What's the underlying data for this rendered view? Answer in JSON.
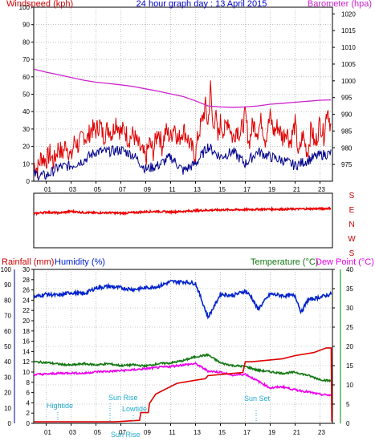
{
  "title": "24 hour graph day : 13 April 2015",
  "colors": {
    "wind": "#e00000",
    "gust": "#ee0000",
    "speed": "#00008b",
    "baro": "#cc22cc",
    "dir": "#ee0000",
    "rain": "#dd0000",
    "hum": "#0022cc",
    "temp": "#117711",
    "dew": "#ee00ee",
    "astro": "#22aacc",
    "frame": "#000000",
    "grid": "#9a9a9a"
  },
  "x_ticks": [
    "01",
    "03",
    "05",
    "07",
    "09",
    "11",
    "13",
    "15",
    "17",
    "19",
    "21",
    "23"
  ],
  "panel1": {
    "left_label": "Windspeed (kph)",
    "right_label": "Barometer (hpa)",
    "left_ticks": [
      "0",
      "10",
      "20",
      "30",
      "40",
      "50",
      "60",
      "70",
      "80",
      "90",
      "100"
    ],
    "right_ticks": [
      "975",
      "980",
      "985",
      "990",
      "995",
      "1000",
      "1005",
      "1010",
      "1015",
      "1020"
    ]
  },
  "panel2": {
    "compass": [
      "S",
      "E",
      "N",
      "W",
      "S"
    ]
  },
  "panel3": {
    "rain_label": "Rainfall (mm)",
    "hum_label": "Humidity (%)",
    "temp_label": "Temperature (°C)",
    "dew_label": "Dew Point (°C)",
    "rain_ticks": [
      "0",
      "10",
      "20",
      "30",
      "40",
      "50",
      "60",
      "70",
      "80",
      "90",
      "100"
    ],
    "hum_ticks": [
      "0",
      "2",
      "4",
      "6",
      "8",
      "10",
      "12",
      "14",
      "16",
      "18",
      "20",
      "22",
      "24",
      "26",
      "28",
      "30"
    ],
    "temp_ticks": [
      "0",
      "5",
      "10",
      "15",
      "20",
      "25",
      "30",
      "35",
      "40"
    ],
    "annotations": {
      "hightide": "Hightide",
      "sunrise": "Sun Rise",
      "lowtide": "Lowtide",
      "sunset": "Sun Set",
      "sunrise_bottom": "Sun Rise"
    }
  },
  "chart_data": [
    {
      "type": "line",
      "title": "24 hour graph day : 13 April 2015",
      "x_label": "",
      "x_range_hours": [
        0,
        24
      ],
      "ylim": [
        0,
        100
      ],
      "y2lim": [
        970,
        1022
      ],
      "series": [
        {
          "name": "Windspeed (kph)",
          "axis": "left",
          "x": [
            0,
            0.3,
            0.6,
            1,
            1.3,
            1.6,
            2,
            2.3,
            2.6,
            3,
            3.3,
            3.6,
            4,
            4.3,
            4.6,
            5,
            5.3,
            5.6,
            6,
            6.3,
            6.6,
            7,
            7.3,
            7.6,
            8,
            8.3,
            8.6,
            9,
            9.3,
            9.6,
            10,
            10.3,
            10.6,
            11,
            11.3,
            11.6,
            12,
            12.3,
            12.6,
            13,
            13.2,
            13.5,
            13.8,
            14,
            14.2,
            14.4,
            14.6,
            14.8,
            15,
            15.3,
            15.6,
            16,
            16.3,
            16.6,
            17,
            17.3,
            17.6,
            18,
            18.3,
            18.6,
            19,
            19.3,
            19.6,
            20,
            20.3,
            20.6,
            21,
            21.3,
            21.6,
            22,
            22.3,
            22.6,
            23,
            23.3,
            23.6,
            23.9
          ],
          "values": [
            10,
            7,
            14,
            12,
            16,
            11,
            20,
            15,
            22,
            13,
            24,
            20,
            27,
            24,
            30,
            29,
            33,
            26,
            31,
            27,
            35,
            28,
            30,
            24,
            27,
            22,
            18,
            13,
            22,
            17,
            30,
            20,
            29,
            25,
            33,
            23,
            30,
            26,
            20,
            15,
            26,
            34,
            43,
            32,
            54,
            30,
            40,
            24,
            34,
            28,
            36,
            24,
            31,
            27,
            38,
            22,
            33,
            29,
            35,
            24,
            37,
            28,
            32,
            25,
            30,
            22,
            33,
            14,
            27,
            16,
            31,
            20,
            34,
            26,
            43,
            30
          ]
        },
        {
          "name": "Gust (kph)",
          "axis": "left",
          "x": [
            0,
            1,
            2,
            3,
            4,
            5,
            6,
            7,
            8,
            9,
            10,
            11,
            12,
            13,
            14,
            15,
            16,
            17,
            18,
            19,
            20,
            21,
            22,
            23,
            23.9
          ],
          "values": [
            4,
            3,
            8,
            9,
            12,
            17,
            17,
            18,
            15,
            7,
            9,
            14,
            6,
            10,
            20,
            14,
            17,
            10,
            17,
            14,
            12,
            9,
            12,
            15,
            16
          ]
        },
        {
          "name": "Barometer (hpa)",
          "axis": "right",
          "x": [
            0,
            1,
            2,
            3,
            4,
            5,
            6,
            7,
            8,
            9,
            10,
            11,
            12,
            13,
            14,
            15,
            16,
            17,
            18,
            19,
            20,
            21,
            22,
            23,
            23.9
          ],
          "values": [
            1003.5,
            1002.6,
            1001.8,
            1001.0,
            1000.2,
            999.6,
            999.2,
            998.8,
            998.3,
            997.6,
            996.9,
            996.1,
            995.3,
            994.0,
            992.5,
            992.2,
            992.1,
            992.2,
            992.5,
            993.0,
            993.3,
            993.6,
            993.9,
            994.2,
            994.3
          ]
        }
      ]
    },
    {
      "type": "scatter",
      "title": "Wind direction",
      "x_range_hours": [
        0,
        24
      ],
      "y_categories": [
        "S",
        "E",
        "N",
        "W",
        "S"
      ],
      "series": [
        {
          "name": "Wind direction",
          "x": [
            0,
            1,
            2,
            3,
            4,
            5,
            6,
            7,
            8,
            9,
            10,
            11,
            12,
            13,
            14,
            15,
            16,
            17,
            18,
            19,
            20,
            21,
            22,
            23,
            23.9
          ],
          "values_deg": [
            225,
            235,
            230,
            240,
            233,
            230,
            232,
            228,
            232,
            238,
            240,
            236,
            240,
            245,
            248,
            250,
            251,
            252,
            254,
            255,
            254,
            256,
            257,
            258,
            260
          ]
        }
      ]
    },
    {
      "type": "line",
      "title": "Rainfall / Humidity / Temperature / Dew Point",
      "x_range_hours": [
        0,
        24
      ],
      "series": [
        {
          "name": "Humidity (%)",
          "axis": "humidity",
          "x": [
            0,
            1,
            2,
            3,
            4,
            5,
            6,
            7,
            8,
            9,
            10,
            11,
            12,
            13,
            13.5,
            14,
            14.5,
            15,
            16,
            17,
            17.5,
            18,
            19,
            20,
            21,
            21.5,
            22,
            23,
            23.9
          ],
          "values": [
            82,
            84,
            83,
            85,
            84,
            88,
            89,
            88,
            87,
            88,
            89,
            92,
            92,
            91,
            80,
            69,
            76,
            84,
            83,
            86,
            82,
            74,
            84,
            83,
            83,
            72,
            80,
            82,
            84
          ]
        },
        {
          "name": "Temperature (°C)",
          "axis": "temperature",
          "x": [
            0,
            1,
            2,
            3,
            4,
            5,
            6,
            7,
            8,
            9,
            10,
            11,
            12,
            13,
            14,
            15,
            16,
            17,
            18,
            19,
            20,
            21,
            22,
            23,
            23.9
          ],
          "values": [
            16.0,
            15.8,
            15.4,
            15.1,
            15.5,
            15.2,
            15.5,
            15.0,
            15.2,
            14.9,
            15.5,
            15.7,
            16.3,
            17.3,
            17.8,
            15.7,
            15.0,
            14.8,
            13.8,
            13.4,
            13.0,
            13.3,
            12.5,
            11.4,
            11.0
          ]
        },
        {
          "name": "Dew Point (°C)",
          "axis": "temperature",
          "x": [
            0,
            1,
            2,
            3,
            4,
            5,
            6,
            7,
            8,
            9,
            10,
            11,
            12,
            13,
            14,
            15,
            16,
            17,
            18,
            19,
            20,
            21,
            22,
            23,
            23.9
          ],
          "values": [
            12.7,
            12.8,
            13.0,
            13.1,
            13.0,
            13.4,
            13.5,
            13.7,
            13.9,
            14.2,
            14.5,
            14.8,
            15.2,
            15.5,
            13.6,
            13.3,
            12.5,
            12.8,
            11.0,
            9.2,
            9.5,
            8.7,
            8.2,
            7.5,
            7.3
          ]
        },
        {
          "name": "Rainfall (mm)",
          "axis": "rainfall",
          "x": [
            0,
            6.5,
            8.5,
            8.6,
            9.2,
            9.3,
            9.8,
            11.5,
            13.0,
            13.8,
            14.0,
            16.8,
            17.0,
            17.5,
            20.0,
            21.0,
            22.5,
            23.5,
            23.9,
            23.95
          ],
          "values": [
            1,
            1,
            2,
            7,
            7,
            13,
            19,
            26,
            28,
            29,
            31,
            33,
            40,
            40,
            42,
            44,
            46,
            49,
            49,
            1
          ]
        }
      ],
      "annotations": [
        {
          "label": "Hightide",
          "x_hour": 1.5
        },
        {
          "label": "Sun Rise",
          "x_hour": 6.2
        },
        {
          "label": "Lowtide",
          "x_hour": 7.7
        },
        {
          "label": "Sun Set",
          "x_hour": 18.0
        }
      ]
    }
  ]
}
